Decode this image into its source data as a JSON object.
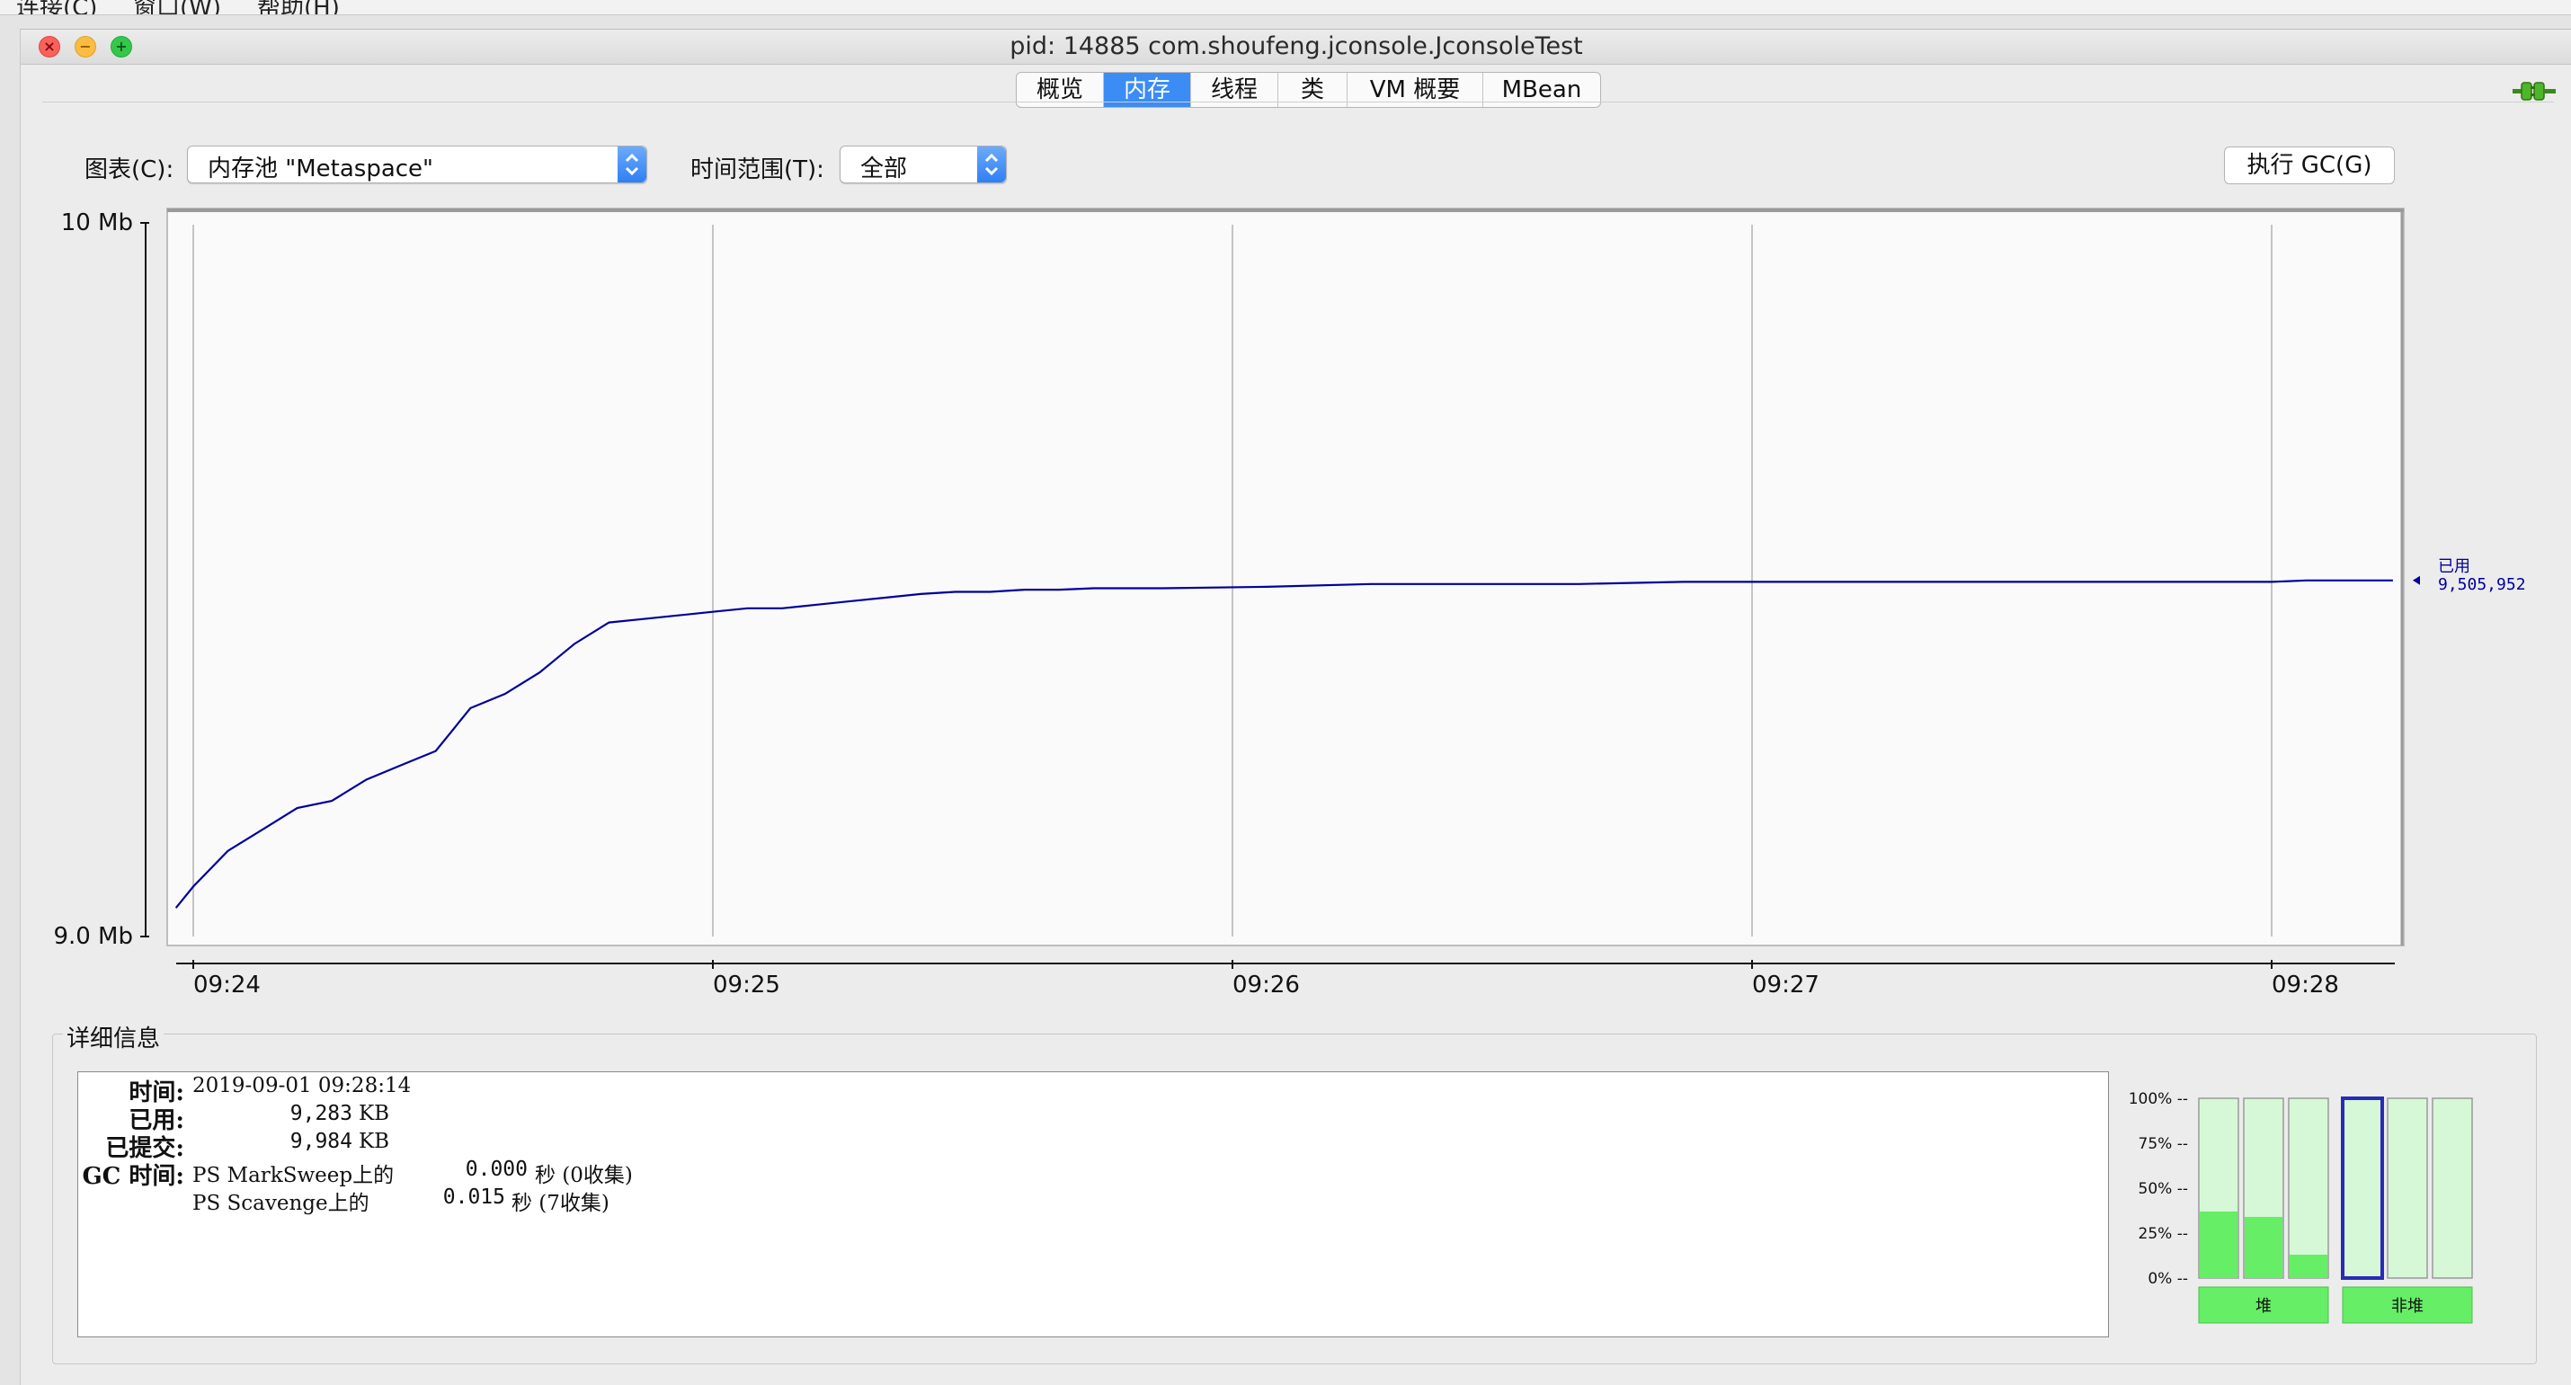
{
  "menubar": {
    "items": [
      "连接(C)",
      "窗口(W)",
      "帮助(H)"
    ]
  },
  "window": {
    "title": "pid: 14885 com.shoufeng.jconsole.JconsoleTest"
  },
  "tabs": [
    {
      "label": "概览",
      "active": false
    },
    {
      "label": "内存",
      "active": true
    },
    {
      "label": "线程",
      "active": false
    },
    {
      "label": "类",
      "active": false
    },
    {
      "label": "VM 概要",
      "active": false
    },
    {
      "label": "MBean",
      "active": false
    }
  ],
  "controls": {
    "chart_label": "图表(C):",
    "chart_value": "内存池 \"Metaspace\"",
    "range_label": "时间范围(T):",
    "range_value": "全部",
    "gc_button": "执行 GC(G)"
  },
  "chart_data": {
    "type": "line",
    "ylim": [
      9.0,
      10.0
    ],
    "y_ticks": [
      "10 Mb",
      "9.0 Mb"
    ],
    "x_ticks": [
      "09:24",
      "09:25",
      "09:26",
      "09:27",
      "09:28"
    ],
    "x_range": [
      "09:23:58",
      "09:28:14"
    ],
    "series": [
      {
        "name": "已用",
        "color": "#00009c",
        "value_label": "9,505,952",
        "x": [
          "09:23:58",
          "09:24:00",
          "09:24:04",
          "09:24:08",
          "09:24:12",
          "09:24:16",
          "09:24:20",
          "09:24:24",
          "09:24:28",
          "09:24:32",
          "09:24:36",
          "09:24:40",
          "09:24:44",
          "09:24:48",
          "09:24:52",
          "09:24:56",
          "09:25:00",
          "09:25:04",
          "09:25:08",
          "09:25:12",
          "09:25:16",
          "09:25:20",
          "09:25:24",
          "09:25:28",
          "09:25:32",
          "09:25:36",
          "09:25:40",
          "09:25:44",
          "09:25:48",
          "09:25:52",
          "09:26:04",
          "09:26:16",
          "09:26:28",
          "09:26:40",
          "09:26:52",
          "09:27:04",
          "09:27:20",
          "09:27:36",
          "09:27:52",
          "09:28:00",
          "09:28:04",
          "09:28:14"
        ],
        "y": [
          9.04,
          9.07,
          9.12,
          9.15,
          9.18,
          9.19,
          9.22,
          9.24,
          9.26,
          9.32,
          9.34,
          9.37,
          9.41,
          9.44,
          9.445,
          9.45,
          9.455,
          9.46,
          9.46,
          9.465,
          9.47,
          9.475,
          9.48,
          9.483,
          9.483,
          9.486,
          9.486,
          9.488,
          9.488,
          9.488,
          9.49,
          9.494,
          9.494,
          9.494,
          9.497,
          9.497,
          9.497,
          9.497,
          9.497,
          9.497,
          9.499,
          9.499
        ]
      }
    ]
  },
  "details": {
    "legend": "详细信息",
    "time_key": "时间:",
    "time_value": "2019-09-01 09:28:14",
    "used_key": "已用:",
    "used_value": "9,283",
    "used_unit": "KB",
    "committed_key": "已提交:",
    "committed_value": "9,984",
    "committed_unit": "KB",
    "gc_key": "GC 时间:",
    "gc1_name": "PS MarkSweep上的",
    "gc1_time": "0.000",
    "gc1_unit": "秒 (0收集)",
    "gc2_name": "PS Scavenge上的",
    "gc2_time": "0.015",
    "gc2_unit": "秒 (7收集)"
  },
  "pool_bars": {
    "ticks": [
      "100% --",
      "75% --",
      "50% --",
      "25% --",
      "0% --"
    ],
    "bars": [
      {
        "group": "堆",
        "fill": 0.37,
        "selected": false
      },
      {
        "group": "堆",
        "fill": 0.34,
        "selected": false
      },
      {
        "group": "堆",
        "fill": 0.13,
        "selected": false
      },
      {
        "group": "非堆",
        "fill": 0.0,
        "selected": true
      },
      {
        "group": "非堆",
        "fill": 0.0,
        "selected": false
      },
      {
        "group": "非堆",
        "fill": 0.0,
        "selected": false
      }
    ],
    "heap_label": "堆",
    "nonheap_label": "非堆",
    "fill_color": "#66ee66",
    "empty_color": "#d6f8d6"
  }
}
